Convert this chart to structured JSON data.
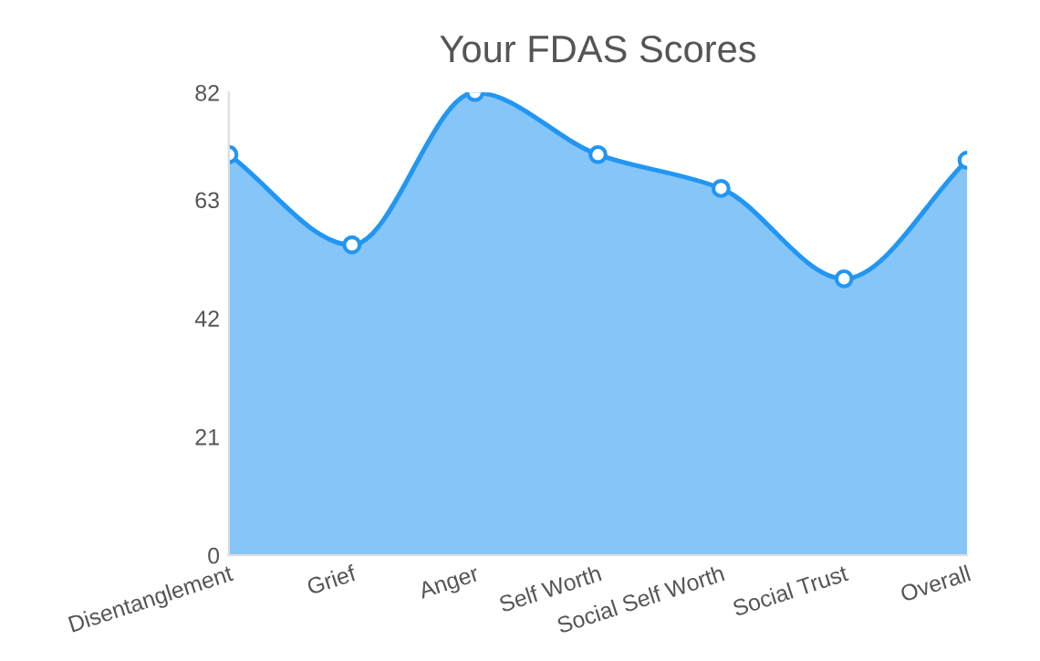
{
  "chart_data": {
    "type": "area",
    "title": "Your FDAS Scores",
    "categories": [
      "Disentanglement",
      "Grief",
      "Anger",
      "Self Worth",
      "Social Self Worth",
      "Social Trust",
      "Overall"
    ],
    "series": [
      {
        "color": "#2196f3",
        "values": [
          71,
          55,
          82,
          71,
          65,
          49,
          70
        ]
      }
    ],
    "ylim": [
      0,
      82
    ],
    "yticks": [
      0,
      21,
      42,
      63,
      82
    ],
    "grid": false,
    "marker": "circle",
    "legend": false
  }
}
